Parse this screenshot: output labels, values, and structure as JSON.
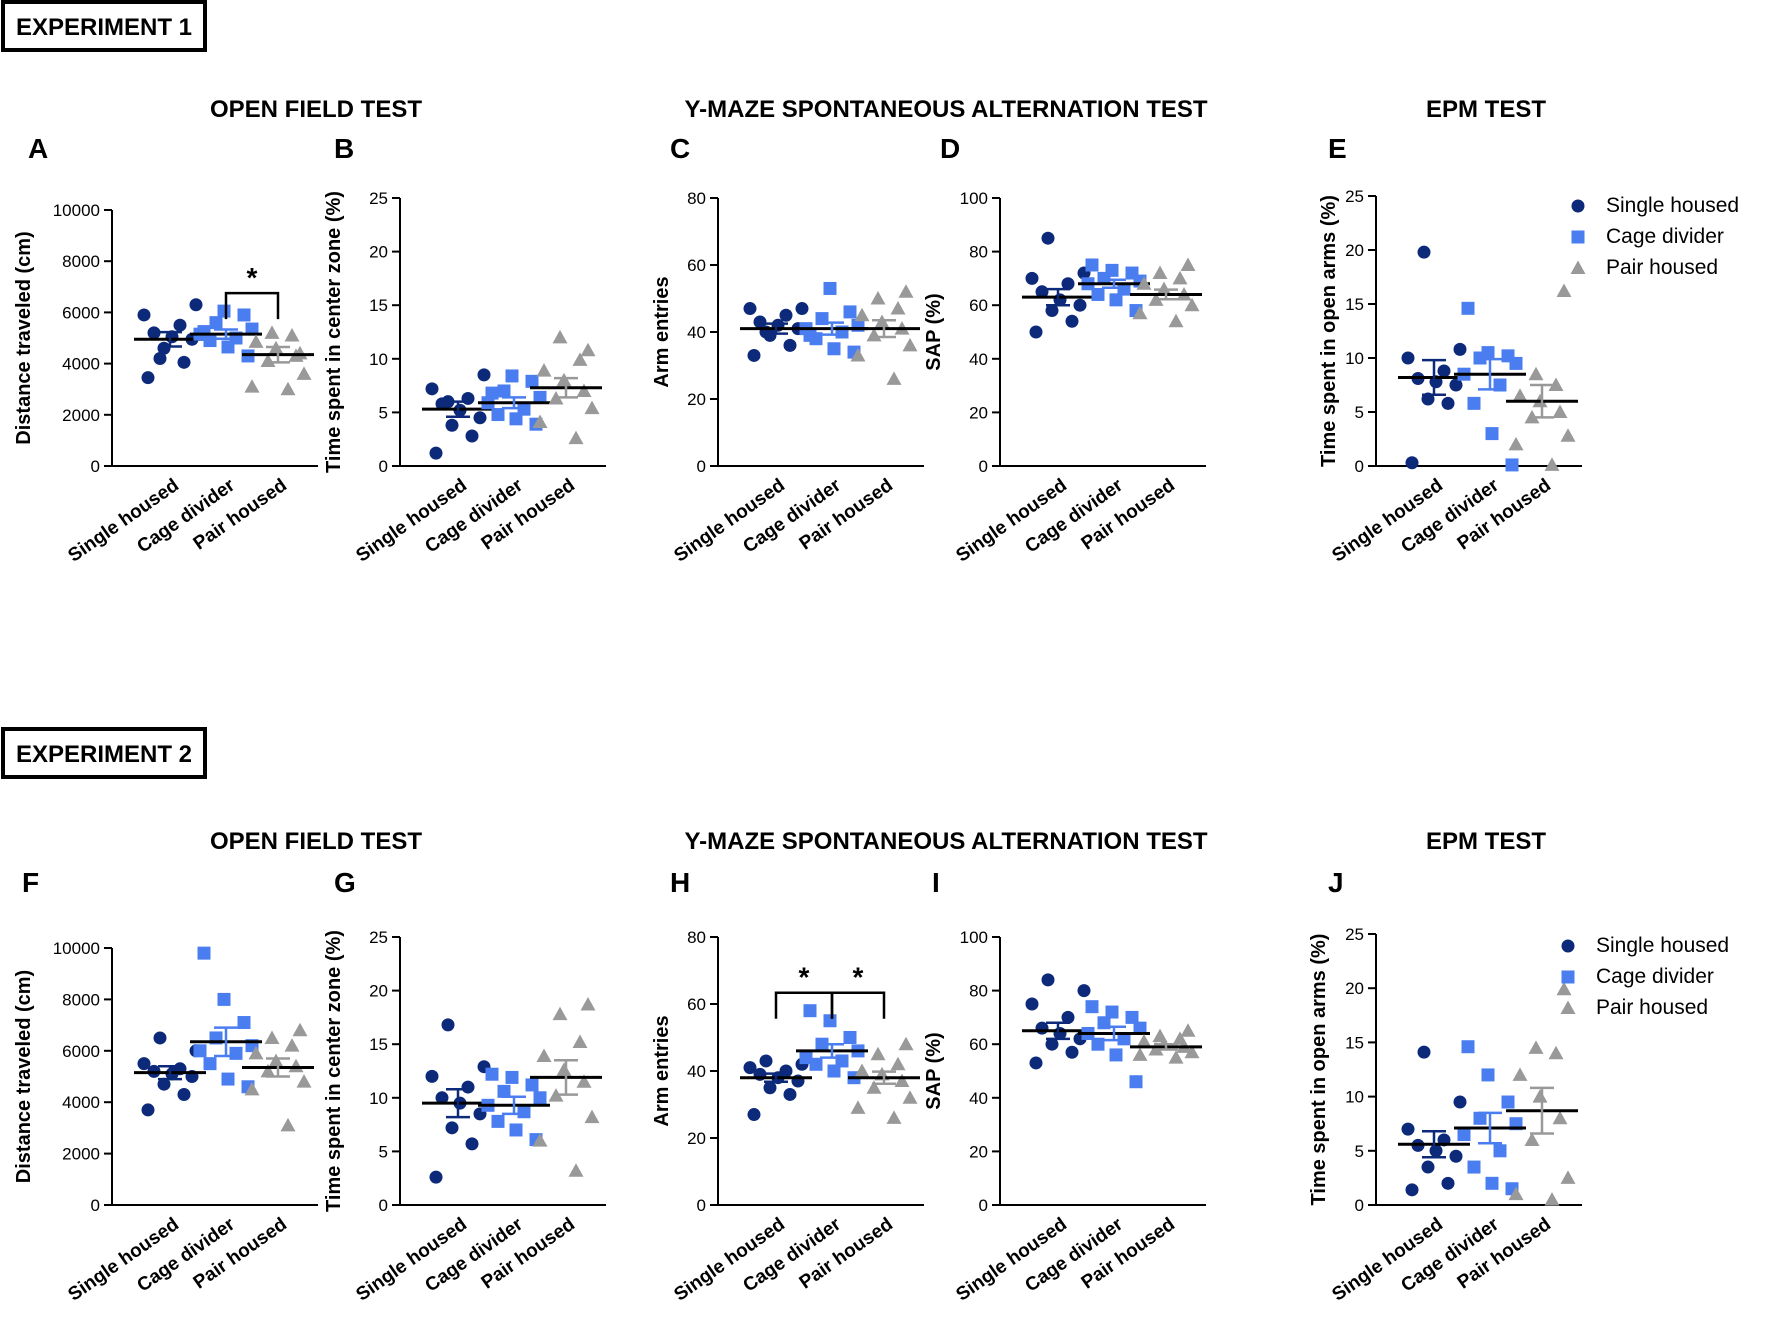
{
  "colors": {
    "single": "#0d2a7a",
    "divider": "#4a7ef0",
    "pair": "#999999",
    "axis": "#000000"
  },
  "groups": [
    "Single housed",
    "Cage divider",
    "Pair housed"
  ],
  "legend": {
    "items": [
      {
        "label": "Single housed",
        "marker": "circle"
      },
      {
        "label": "Cage divider",
        "marker": "square"
      },
      {
        "label": "Pair housed",
        "marker": "triangle"
      }
    ]
  },
  "experiments": [
    {
      "label": "EXPERIMENT 1",
      "sections": [
        "OPEN FIELD TEST",
        "Y-MAZE SPONTANEOUS ALTERNATION TEST",
        "EPM TEST"
      ]
    },
    {
      "label": "EXPERIMENT 2",
      "sections": [
        "OPEN FIELD TEST",
        "Y-MAZE SPONTANEOUS ALTERNATION TEST",
        "EPM TEST"
      ]
    }
  ],
  "chart_data": [
    {
      "letter": "A",
      "type": "scatter",
      "ylabel": "Distance traveled (cm)",
      "ylim": [
        0,
        10000
      ],
      "yticks": [
        0,
        2000,
        4000,
        6000,
        8000,
        10000
      ],
      "groups": [
        {
          "name": "Single housed",
          "mean": 4950,
          "sem": 280,
          "values": [
            3450,
            4050,
            4600,
            4950,
            5050,
            5200,
            5500,
            5900,
            6300,
            4200
          ]
        },
        {
          "name": "Cage divider",
          "mean": 5150,
          "sem": 180,
          "values": [
            4300,
            4650,
            4900,
            5000,
            5150,
            5350,
            5600,
            5900,
            6050,
            5250
          ]
        },
        {
          "name": "Pair housed",
          "mean": 4350,
          "sem": 300,
          "values": [
            3000,
            3100,
            3600,
            4100,
            4300,
            4600,
            4850,
            5100,
            5200,
            4400
          ]
        }
      ],
      "significance": [
        {
          "from": 1,
          "to": 2,
          "label": "*"
        }
      ]
    },
    {
      "letter": "B",
      "type": "scatter",
      "ylabel": "Time spent in center zone (%)",
      "ylim": [
        0,
        25
      ],
      "yticks": [
        0,
        5,
        10,
        15,
        20,
        25
      ],
      "groups": [
        {
          "name": "Single housed",
          "mean": 5.3,
          "sem": 0.7,
          "values": [
            1.2,
            2.8,
            3.8,
            4.5,
            5.2,
            5.8,
            6.3,
            7.2,
            8.5,
            6.0
          ]
        },
        {
          "name": "Cage divider",
          "mean": 5.9,
          "sem": 0.5,
          "values": [
            3.9,
            4.4,
            4.8,
            5.3,
            5.9,
            6.4,
            7.0,
            7.9,
            8.4,
            6.8
          ]
        },
        {
          "name": "Pair housed",
          "mean": 7.3,
          "sem": 0.9,
          "values": [
            2.6,
            4.1,
            5.4,
            6.3,
            7.0,
            8.0,
            8.9,
            9.9,
            12.0,
            10.8
          ]
        }
      ]
    },
    {
      "letter": "C",
      "type": "scatter",
      "ylabel": "Arm entries",
      "ylim": [
        0,
        80
      ],
      "yticks": [
        0,
        20,
        40,
        60,
        80
      ],
      "groups": [
        {
          "name": "Single housed",
          "mean": 41,
          "sem": 1.5,
          "values": [
            33,
            36,
            39,
            41,
            42,
            43,
            45,
            47,
            47,
            40
          ]
        },
        {
          "name": "Cage divider",
          "mean": 41,
          "sem": 1.8,
          "values": [
            34,
            35,
            38,
            40,
            41,
            42,
            44,
            46,
            53,
            39
          ]
        },
        {
          "name": "Pair housed",
          "mean": 41,
          "sem": 2.5,
          "values": [
            26,
            33,
            36,
            39,
            41,
            43,
            45,
            47,
            50,
            52
          ]
        }
      ]
    },
    {
      "letter": "D",
      "type": "scatter",
      "ylabel": "SAP (%)",
      "ylim": [
        0,
        100
      ],
      "yticks": [
        0,
        20,
        40,
        60,
        80,
        100
      ],
      "groups": [
        {
          "name": "Single housed",
          "mean": 63,
          "sem": 3,
          "values": [
            50,
            54,
            58,
            60,
            62,
            65,
            68,
            70,
            72,
            85
          ]
        },
        {
          "name": "Cage divider",
          "mean": 68,
          "sem": 1.5,
          "values": [
            58,
            62,
            64,
            66,
            68,
            69,
            70,
            72,
            73,
            75
          ]
        },
        {
          "name": "Pair housed",
          "mean": 64,
          "sem": 1.8,
          "values": [
            54,
            57,
            60,
            62,
            64,
            66,
            68,
            70,
            72,
            75
          ]
        }
      ]
    },
    {
      "letter": "E",
      "type": "scatter",
      "ylabel": "Time spent in open arms (%)",
      "ylim": [
        0,
        25
      ],
      "yticks": [
        0,
        5,
        10,
        15,
        20,
        25
      ],
      "groups": [
        {
          "name": "Single housed",
          "mean": 8.2,
          "sem": 1.6,
          "values": [
            0.3,
            5.8,
            6.2,
            7.5,
            7.8,
            8.1,
            8.8,
            10.0,
            10.8,
            19.8
          ]
        },
        {
          "name": "Cage divider",
          "mean": 8.5,
          "sem": 1.4,
          "values": [
            0.1,
            3.0,
            5.8,
            7.5,
            8.5,
            9.5,
            10.0,
            10.2,
            10.5,
            14.6
          ]
        },
        {
          "name": "Pair housed",
          "mean": 6.0,
          "sem": 1.5,
          "values": [
            0.1,
            2.0,
            2.8,
            4.5,
            5.0,
            6.0,
            6.5,
            7.5,
            8.5,
            16.2
          ]
        }
      ]
    },
    {
      "letter": "F",
      "type": "scatter",
      "ylabel": "Distance traveled (cm)",
      "ylim": [
        0,
        10000
      ],
      "yticks": [
        0,
        2000,
        4000,
        6000,
        8000,
        10000
      ],
      "groups": [
        {
          "name": "Single housed",
          "mean": 5150,
          "sem": 250,
          "values": [
            3700,
            4300,
            4700,
            5000,
            5100,
            5200,
            5300,
            5500,
            6000,
            6500
          ]
        },
        {
          "name": "Cage divider",
          "mean": 6350,
          "sem": 550,
          "values": [
            4600,
            4900,
            5500,
            5900,
            6000,
            6200,
            6500,
            7100,
            8000,
            9800
          ]
        },
        {
          "name": "Pair housed",
          "mean": 5350,
          "sem": 350,
          "values": [
            3100,
            4500,
            4800,
            5200,
            5400,
            5600,
            5900,
            6200,
            6500,
            6800
          ]
        }
      ]
    },
    {
      "letter": "G",
      "type": "scatter",
      "ylabel": "Time spent in center zone (%)",
      "ylim": [
        0,
        25
      ],
      "yticks": [
        0,
        5,
        10,
        15,
        20,
        25
      ],
      "groups": [
        {
          "name": "Single housed",
          "mean": 9.5,
          "sem": 1.3,
          "values": [
            2.6,
            5.7,
            7.2,
            8.5,
            9.5,
            10.0,
            11.0,
            12.0,
            12.9,
            16.8
          ]
        },
        {
          "name": "Cage divider",
          "mean": 9.3,
          "sem": 0.8,
          "values": [
            6.1,
            7.0,
            7.8,
            8.7,
            9.3,
            10.0,
            10.6,
            11.2,
            11.9,
            12.2
          ]
        },
        {
          "name": "Pair housed",
          "mean": 11.9,
          "sem": 1.6,
          "values": [
            3.2,
            6.0,
            8.2,
            10.2,
            11.5,
            12.6,
            13.9,
            15.2,
            17.8,
            18.7
          ]
        }
      ]
    },
    {
      "letter": "H",
      "type": "scatter",
      "ylabel": "Arm entries",
      "ylim": [
        0,
        80
      ],
      "yticks": [
        0,
        20,
        40,
        60,
        80
      ],
      "groups": [
        {
          "name": "Single housed",
          "mean": 38,
          "sem": 1.2,
          "values": [
            27,
            33,
            35,
            37,
            38,
            39,
            40,
            41,
            42,
            43
          ]
        },
        {
          "name": "Cage divider",
          "mean": 46,
          "sem": 2.0,
          "values": [
            38,
            40,
            42,
            43,
            44,
            46,
            48,
            50,
            55,
            58
          ]
        },
        {
          "name": "Pair housed",
          "mean": 38,
          "sem": 1.8,
          "values": [
            26,
            29,
            32,
            35,
            37,
            39,
            40,
            42,
            45,
            48
          ]
        }
      ],
      "significance": [
        {
          "from": 0,
          "to": 1,
          "label": "*"
        },
        {
          "from": 1,
          "to": 2,
          "label": "*"
        }
      ]
    },
    {
      "letter": "I",
      "type": "scatter",
      "ylabel": "SAP (%)",
      "ylim": [
        0,
        100
      ],
      "yticks": [
        0,
        20,
        40,
        60,
        80,
        100
      ],
      "groups": [
        {
          "name": "Single housed",
          "mean": 65,
          "sem": 3.0,
          "values": [
            53,
            57,
            60,
            62,
            64,
            66,
            70,
            75,
            80,
            84
          ]
        },
        {
          "name": "Cage divider",
          "mean": 64,
          "sem": 2.5,
          "values": [
            46,
            56,
            60,
            62,
            64,
            66,
            68,
            70,
            72,
            74
          ]
        },
        {
          "name": "Pair housed",
          "mean": 59,
          "sem": 1.0,
          "values": [
            55,
            56,
            57,
            58,
            59,
            60,
            61,
            62,
            63,
            65
          ]
        }
      ]
    },
    {
      "letter": "J",
      "type": "scatter",
      "ylabel": "Time spent in open arms (%)",
      "ylim": [
        0,
        25
      ],
      "yticks": [
        0,
        5,
        10,
        15,
        20,
        25
      ],
      "groups": [
        {
          "name": "Single housed",
          "mean": 5.6,
          "sem": 1.2,
          "values": [
            1.4,
            2.0,
            3.5,
            4.5,
            5.0,
            5.5,
            6.0,
            7.0,
            9.5,
            14.1
          ]
        },
        {
          "name": "Cage divider",
          "mean": 7.1,
          "sem": 1.4,
          "values": [
            1.5,
            2.0,
            3.5,
            5.0,
            6.5,
            7.5,
            8.0,
            9.5,
            12.0,
            14.6
          ]
        },
        {
          "name": "Pair housed",
          "mean": 8.7,
          "sem": 2.1,
          "values": [
            0.5,
            1.0,
            2.5,
            6.0,
            8.0,
            10.0,
            12.0,
            14.0,
            14.5,
            19.9
          ]
        }
      ]
    }
  ]
}
